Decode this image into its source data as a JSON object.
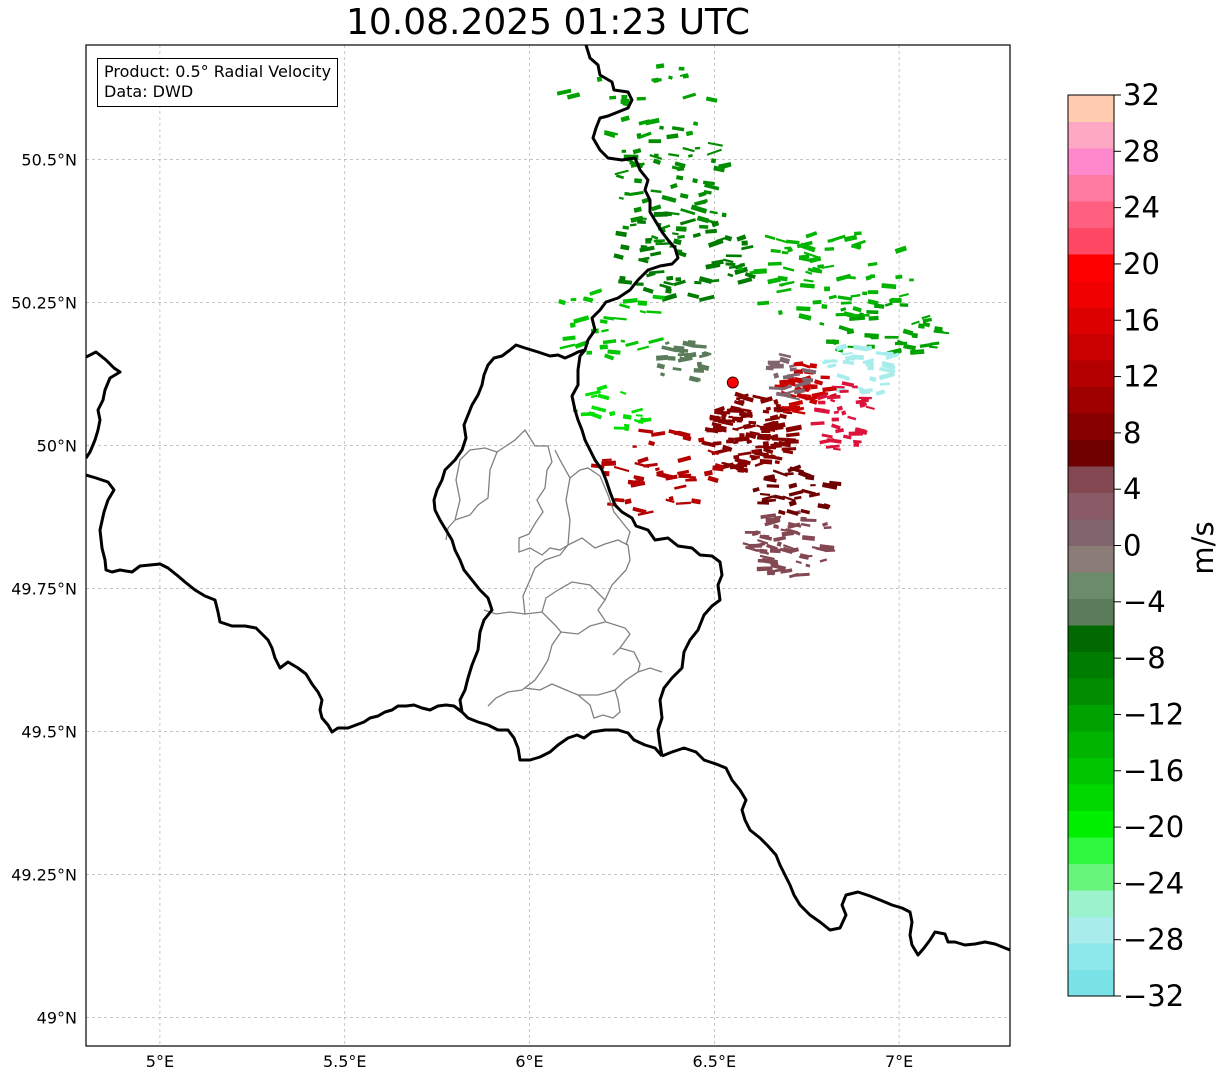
{
  "title": "10.08.2025 01:23 UTC",
  "info": {
    "product": "Product: 0.5° Radial Velocity",
    "data": "Data: DWD"
  },
  "axes": {
    "lon_ticks": [
      {
        "value": 5.0,
        "label": "5°E"
      },
      {
        "value": 5.5,
        "label": "5.5°E"
      },
      {
        "value": 6.0,
        "label": "6°E"
      },
      {
        "value": 6.5,
        "label": "6.5°E"
      },
      {
        "value": 7.0,
        "label": "7°E"
      }
    ],
    "lat_ticks": [
      {
        "value": 50.5,
        "label": "50.5°N"
      },
      {
        "value": 50.25,
        "label": "50.25°N"
      },
      {
        "value": 50.0,
        "label": "50°N"
      },
      {
        "value": 49.75,
        "label": "49.75°N"
      },
      {
        "value": 49.5,
        "label": "49.5°N"
      },
      {
        "value": 49.25,
        "label": "49.25°N"
      },
      {
        "value": 49.0,
        "label": "49°N"
      }
    ],
    "lon_range": [
      4.8,
      7.3
    ],
    "lat_range": [
      48.95,
      50.7
    ]
  },
  "radar_site": {
    "lon": 6.55,
    "lat": 50.11,
    "color": "#ff0000"
  },
  "colorbar": {
    "unit": "m/s",
    "range": [
      -32,
      32
    ],
    "tick_labels": [
      "32",
      "28",
      "24",
      "20",
      "16",
      "12",
      "8",
      "4",
      "0",
      "−4",
      "−8",
      "−12",
      "−16",
      "−20",
      "−24",
      "−28",
      "−32"
    ],
    "colors_bottom_to_top": [
      "#7ae3e8",
      "#8ce8ea",
      "#a8ecec",
      "#9af3cc",
      "#68f57c",
      "#2ef93e",
      "#00f000",
      "#00d800",
      "#00c600",
      "#00b400",
      "#00a200",
      "#008e00",
      "#007c00",
      "#006a00",
      "#5a7c5a",
      "#6b8c6b",
      "#8c7c78",
      "#80646e",
      "#8a5a66",
      "#844852",
      "#6e0000",
      "#860000",
      "#9e0000",
      "#b40000",
      "#c80000",
      "#dc0000",
      "#f00000",
      "#ff0000",
      "#ff4864",
      "#ff6080",
      "#ff7aa0",
      "#ff88cc",
      "#ffa8c4",
      "#ffccb0"
    ]
  },
  "echo_clusters": [
    {
      "lon": 6.38,
      "lat": 50.45,
      "spread_lon": 0.16,
      "spread_lat": 0.12,
      "count": 70,
      "color": "#008e00"
    },
    {
      "lon": 6.42,
      "lat": 50.33,
      "spread_lon": 0.2,
      "spread_lat": 0.08,
      "count": 60,
      "color": "#007c00"
    },
    {
      "lon": 6.3,
      "lat": 50.6,
      "spread_lon": 0.22,
      "spread_lat": 0.07,
      "count": 25,
      "color": "#00a200"
    },
    {
      "lon": 6.8,
      "lat": 50.3,
      "spread_lon": 0.25,
      "spread_lat": 0.08,
      "count": 70,
      "color": "#00b400"
    },
    {
      "lon": 6.95,
      "lat": 50.2,
      "spread_lon": 0.18,
      "spread_lat": 0.05,
      "count": 40,
      "color": "#00a200"
    },
    {
      "lon": 6.22,
      "lat": 50.22,
      "spread_lon": 0.15,
      "spread_lat": 0.08,
      "count": 30,
      "color": "#00c600"
    },
    {
      "lon": 6.22,
      "lat": 50.06,
      "spread_lon": 0.1,
      "spread_lat": 0.05,
      "count": 20,
      "color": "#00e000"
    },
    {
      "lon": 6.9,
      "lat": 50.13,
      "spread_lon": 0.1,
      "spread_lat": 0.05,
      "count": 30,
      "color": "#a8ecec"
    },
    {
      "lon": 6.6,
      "lat": 50.02,
      "spread_lon": 0.12,
      "spread_lat": 0.07,
      "count": 120,
      "color": "#860000"
    },
    {
      "lon": 6.75,
      "lat": 50.1,
      "spread_lon": 0.08,
      "spread_lat": 0.05,
      "count": 40,
      "color": "#c80000"
    },
    {
      "lon": 6.85,
      "lat": 50.05,
      "spread_lon": 0.08,
      "spread_lat": 0.06,
      "count": 35,
      "color": "#dc143c"
    },
    {
      "lon": 6.35,
      "lat": 49.95,
      "spread_lon": 0.18,
      "spread_lat": 0.08,
      "count": 45,
      "color": "#b40000"
    },
    {
      "lon": 6.7,
      "lat": 49.83,
      "spread_lon": 0.12,
      "spread_lat": 0.06,
      "count": 60,
      "color": "#844852"
    },
    {
      "lon": 6.72,
      "lat": 49.92,
      "spread_lon": 0.12,
      "spread_lat": 0.04,
      "count": 30,
      "color": "#6e0000"
    },
    {
      "lon": 6.42,
      "lat": 50.15,
      "spread_lon": 0.08,
      "spread_lat": 0.04,
      "count": 25,
      "color": "#5a7c5a"
    },
    {
      "lon": 6.7,
      "lat": 50.12,
      "spread_lon": 0.06,
      "spread_lat": 0.04,
      "count": 20,
      "color": "#80646e"
    }
  ]
}
